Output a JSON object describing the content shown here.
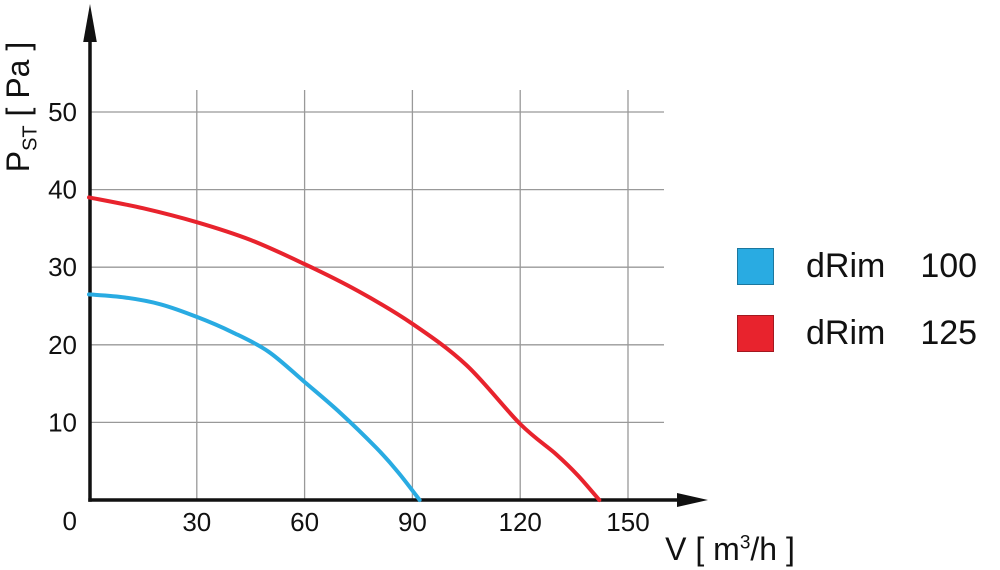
{
  "chart_data": {
    "type": "line",
    "title": "",
    "xlabel": "V [ m³/h ]",
    "ylabel": "Pst [ Pa ]",
    "xlim": [
      0,
      168
    ],
    "ylim": [
      0,
      53
    ],
    "grid": true,
    "x_ticks": [
      0,
      30,
      60,
      90,
      120,
      150
    ],
    "y_ticks": [
      0,
      10,
      20,
      30,
      40,
      50
    ],
    "legend_position": "right",
    "series": [
      {
        "name": "dRim 100",
        "color": "#29ABE2",
        "points": [
          [
            0,
            26.5
          ],
          [
            10,
            26.1
          ],
          [
            20,
            25.2
          ],
          [
            30,
            23.6
          ],
          [
            40,
            21.6
          ],
          [
            50,
            19.1
          ],
          [
            60,
            15.2
          ],
          [
            70,
            11.2
          ],
          [
            80,
            6.7
          ],
          [
            86,
            3.6
          ],
          [
            92,
            0
          ]
        ]
      },
      {
        "name": "dRim 125",
        "color": "#E8232D",
        "points": [
          [
            0,
            39
          ],
          [
            15,
            37.6
          ],
          [
            30,
            35.8
          ],
          [
            45,
            33.5
          ],
          [
            60,
            30.4
          ],
          [
            75,
            26.9
          ],
          [
            90,
            22.7
          ],
          [
            105,
            17.4
          ],
          [
            120,
            9.8
          ],
          [
            130,
            5.9
          ],
          [
            136,
            3.2
          ],
          [
            142,
            0
          ]
        ]
      }
    ]
  },
  "axis": {
    "x": {
      "pre": "V [ m",
      "sup": "3",
      "post": "/h ]"
    },
    "y": {
      "symbol": "P",
      "subscript": "ST",
      "units": " [ Pa ]"
    }
  },
  "legend": {
    "items": [
      {
        "model": "dRim",
        "size": "100",
        "color": "#29ABE2"
      },
      {
        "model": "dRim",
        "size": "125",
        "color": "#E8232D"
      }
    ]
  },
  "colors": {
    "grid": "#999999",
    "axis": "#111111",
    "text": "#111111",
    "background": "#FFFFFF"
  }
}
